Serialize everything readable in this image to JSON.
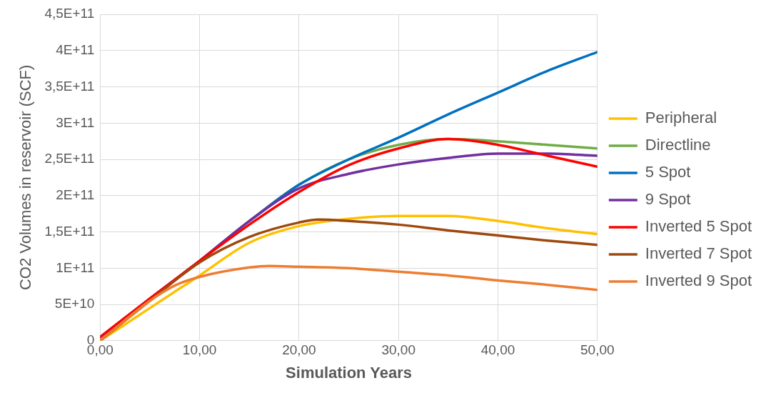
{
  "chart_data": {
    "type": "line",
    "xlabel": "Simulation Years",
    "ylabel": "CO2 Volumes in reservoir (SCF)",
    "xlim": [
      0,
      50
    ],
    "xticks": [
      {
        "value": 0,
        "label": "0,00"
      },
      {
        "value": 10,
        "label": "10,00"
      },
      {
        "value": 20,
        "label": "20,00"
      },
      {
        "value": 30,
        "label": "30,00"
      },
      {
        "value": 40,
        "label": "40,00"
      },
      {
        "value": 50,
        "label": "50,00"
      }
    ],
    "ylim": [
      0,
      450000000000.0
    ],
    "yticks": [
      {
        "value": 0,
        "label": "0"
      },
      {
        "value": 50000000000.0,
        "label": "5E+10"
      },
      {
        "value": 100000000000.0,
        "label": "1E+11"
      },
      {
        "value": 150000000000.0,
        "label": "1,5E+11"
      },
      {
        "value": 200000000000.0,
        "label": "2E+11"
      },
      {
        "value": 250000000000.0,
        "label": "2,5E+11"
      },
      {
        "value": 300000000000.0,
        "label": "3E+11"
      },
      {
        "value": 350000000000.0,
        "label": "3,5E+11"
      },
      {
        "value": 400000000000.0,
        "label": "4E+11"
      },
      {
        "value": 450000000000.0,
        "label": "4,5E+11"
      }
    ],
    "grid": true,
    "legend": "right",
    "marker": "none",
    "line_style": "solid",
    "x": [
      0,
      5,
      10,
      15,
      20,
      25,
      30,
      35,
      40,
      45,
      50
    ],
    "series": [
      {
        "name": "Peripheral",
        "color": "#ffc000",
        "values": [
          0,
          45000000000.0,
          90000000000.0,
          135000000000.0,
          158000000000.0,
          168000000000.0,
          172000000000.0,
          172000000000.0,
          165000000000.0,
          155000000000.0,
          147000000000.0
        ]
      },
      {
        "name": "Directline",
        "color": "#70ad47",
        "values": [
          null,
          null,
          110000000000.0,
          165000000000.0,
          215000000000.0,
          250000000000.0,
          270000000000.0,
          278000000000.0,
          275000000000.0,
          270000000000.0,
          265000000000.0
        ]
      },
      {
        "name": "5 Spot",
        "color": "#0070c0",
        "values": [
          null,
          null,
          null,
          165000000000.0,
          215000000000.0,
          250000000000.0,
          280000000000.0,
          312000000000.0,
          342000000000.0,
          372000000000.0,
          398000000000.0
        ]
      },
      {
        "name": "9 Spot",
        "color": "#7030a0",
        "values": [
          5000000000.0,
          58000000000.0,
          110000000000.0,
          165000000000.0,
          210000000000.0,
          230000000000.0,
          243000000000.0,
          252000000000.0,
          258000000000.0,
          258000000000.0,
          255000000000.0
        ]
      },
      {
        "name": "Inverted 5 Spot",
        "color": "#ff0000",
        "values": [
          5000000000.0,
          58000000000.0,
          110000000000.0,
          160000000000.0,
          205000000000.0,
          242000000000.0,
          265000000000.0,
          278000000000.0,
          270000000000.0,
          255000000000.0,
          240000000000.0
        ]
      },
      {
        "name": "Inverted 7 Spot",
        "color": "#9e480e",
        "x": [
          0,
          5,
          10,
          15,
          20,
          22,
          25,
          30,
          35,
          40,
          45,
          50
        ],
        "values": [
          0,
          55000000000.0,
          108000000000.0,
          143000000000.0,
          163000000000.0,
          167000000000.0,
          165000000000.0,
          160000000000.0,
          152000000000.0,
          145000000000.0,
          138000000000.0,
          132000000000.0
        ]
      },
      {
        "name": "Inverted 9 Spot",
        "color": "#ed7d31",
        "x": [
          0,
          5,
          7.5,
          10,
          15,
          17,
          20,
          25,
          30,
          35,
          40,
          45,
          50
        ],
        "values": [
          0,
          55000000000.0,
          76000000000.0,
          88000000000.0,
          101000000000.0,
          103000000000.0,
          102000000000.0,
          100000000000.0,
          95000000000.0,
          90000000000.0,
          83000000000.0,
          77000000000.0,
          70000000000.0
        ]
      }
    ]
  }
}
